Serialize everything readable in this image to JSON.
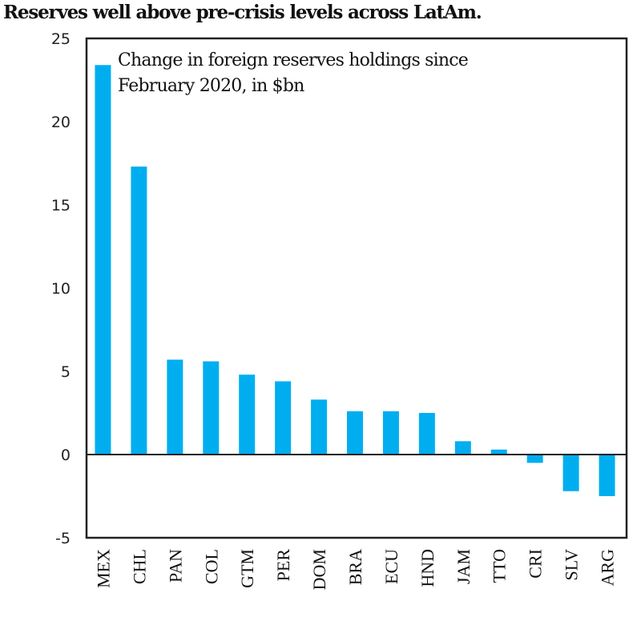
{
  "chart_data": {
    "type": "bar",
    "title": "Reserves well above pre-crisis levels across LatAm.",
    "annotation": [
      "Change in foreign reserves holdings since",
      "February 2020, in $bn"
    ],
    "xlabel": "",
    "ylabel": "",
    "categories": [
      "MEX",
      "CHL",
      "PAN",
      "COL",
      "GTM",
      "PER",
      "DOM",
      "BRA",
      "ECU",
      "HND",
      "JAM",
      "TTO",
      "CRI",
      "SLV",
      "ARG"
    ],
    "values": [
      23.4,
      17.3,
      5.7,
      5.6,
      4.8,
      4.4,
      3.3,
      2.6,
      2.6,
      2.5,
      0.8,
      0.3,
      -0.5,
      -2.2,
      -2.5
    ],
    "ylim": [
      -5,
      25
    ],
    "yticks": [
      25,
      20,
      15,
      10,
      5,
      0,
      -5
    ],
    "grid": false,
    "bar_color": "#00AEEF",
    "legend": "none"
  }
}
